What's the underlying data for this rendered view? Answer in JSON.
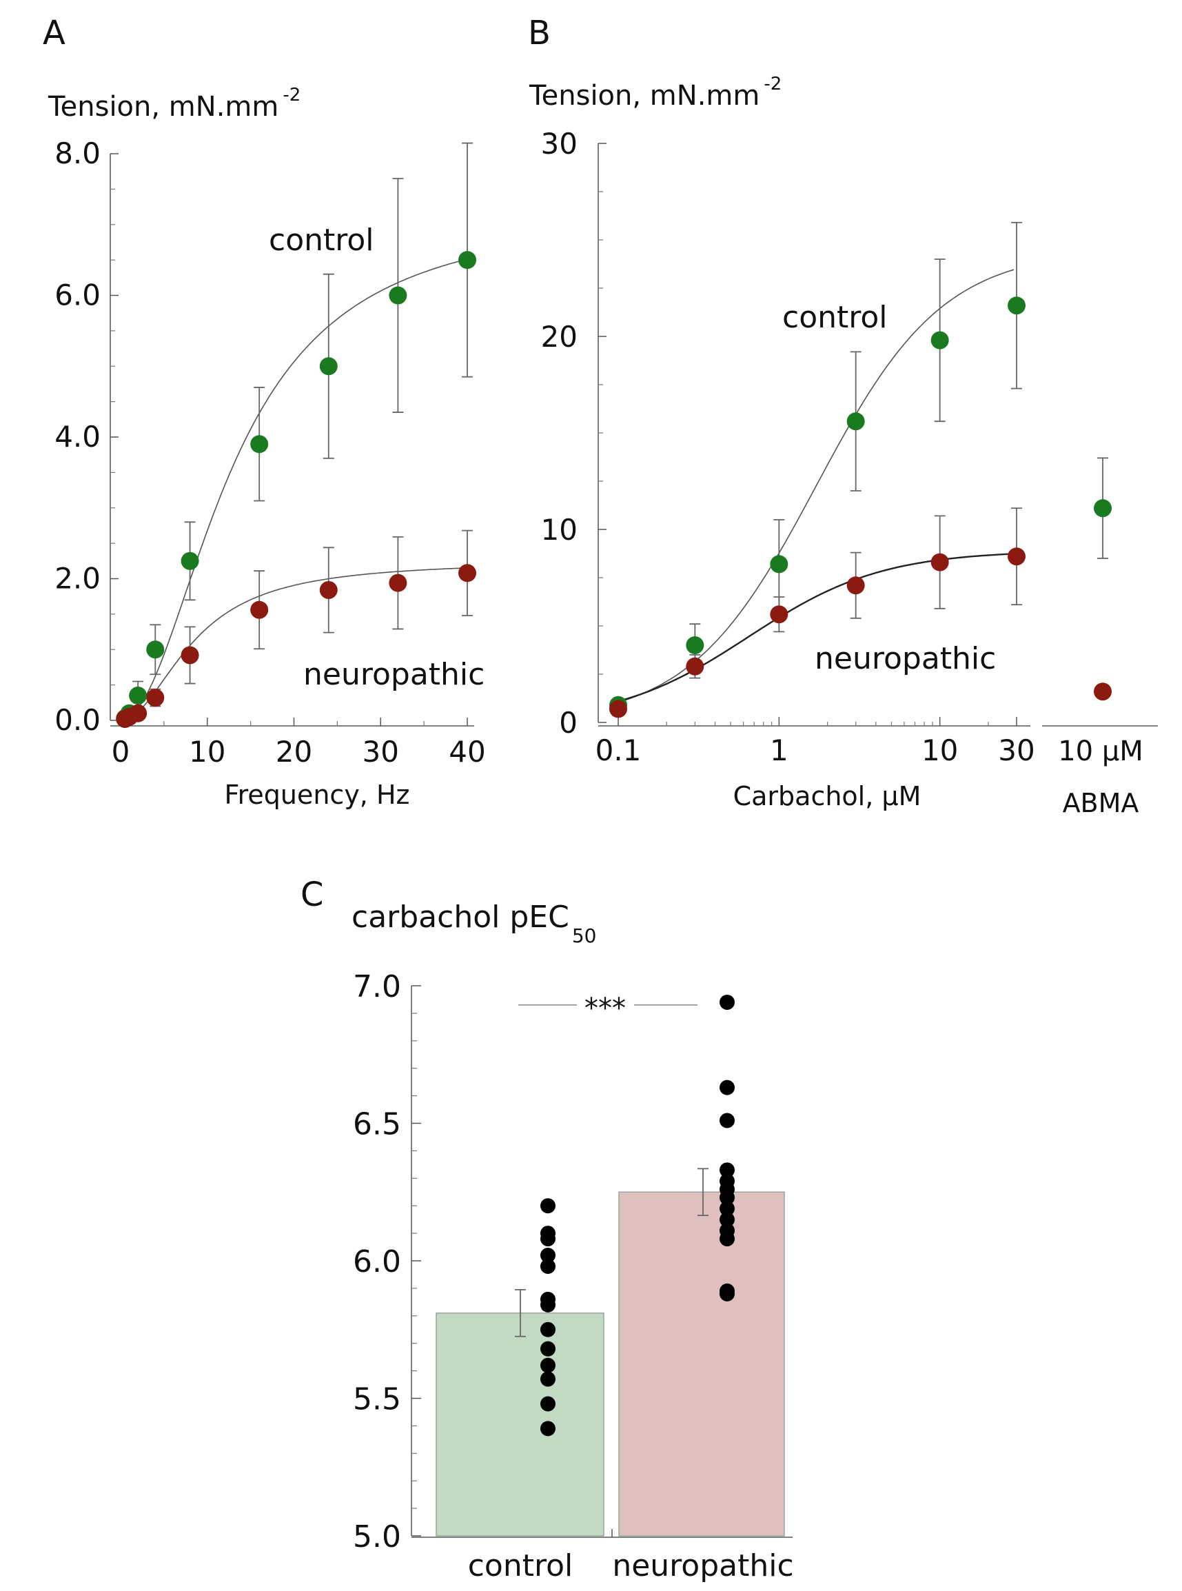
{
  "chart_data": [
    {
      "panel": "A",
      "type": "scatter",
      "ylabel": "Tension, mN.mm",
      "ylabel_sup": "-2",
      "xlabel": "Frequency, Hz",
      "xlim": [
        0,
        40
      ],
      "ylim": [
        0,
        8
      ],
      "x_ticks": [
        0,
        10,
        20,
        30,
        40
      ],
      "x_tick_labels": [
        "0",
        "10",
        "20",
        "30",
        "40"
      ],
      "y_ticks": [
        0,
        2,
        4,
        6,
        8
      ],
      "y_tick_labels": [
        "0.0",
        "2.0",
        "4.0",
        "6.0",
        "8.0"
      ],
      "series": [
        {
          "label": "control",
          "color": "#1a7a1f",
          "x": [
            0.5,
            1,
            2,
            4,
            8,
            16,
            24,
            32,
            40
          ],
          "y": [
            0.03,
            0.1,
            0.35,
            1.0,
            2.25,
            3.9,
            5.0,
            6.0,
            6.5
          ],
          "err": [
            0.02,
            0.05,
            0.2,
            0.35,
            0.55,
            0.8,
            1.3,
            1.65,
            1.65
          ]
        },
        {
          "label": "neuropathic",
          "color": "#8b1a10",
          "x": [
            0.5,
            1,
            2,
            4,
            8,
            16,
            24,
            32,
            40
          ],
          "y": [
            0.02,
            0.05,
            0.1,
            0.32,
            0.92,
            1.56,
            1.84,
            1.94,
            2.08
          ],
          "err": [
            0.01,
            0.02,
            0.05,
            0.12,
            0.4,
            0.55,
            0.6,
            0.65,
            0.6
          ]
        }
      ]
    },
    {
      "panel": "B",
      "type": "scatter",
      "ylabel": "Tension, mN.mm",
      "ylabel_sup": "-2",
      "xlabel": "Carbachol, µM",
      "x_scale": "log",
      "xlim": [
        0.1,
        30
      ],
      "ylim": [
        0,
        30
      ],
      "x_ticks": [
        0.1,
        1,
        10,
        30
      ],
      "x_tick_labels": [
        "0.1",
        "1",
        "10",
        "30"
      ],
      "y_ticks": [
        0,
        10,
        20,
        30
      ],
      "y_tick_labels": [
        "0",
        "10",
        "20",
        "30"
      ],
      "series": [
        {
          "label": "control",
          "color": "#1a7a1f",
          "x": [
            0.1,
            0.3,
            1,
            3,
            10,
            30
          ],
          "y": [
            0.9,
            4.0,
            8.2,
            15.6,
            19.8,
            21.6
          ],
          "err": [
            0.3,
            1.1,
            2.3,
            3.6,
            4.2,
            4.3
          ]
        },
        {
          "label": "neuropathic",
          "color": "#8b1a10",
          "x": [
            0.1,
            0.3,
            1,
            3,
            10,
            30
          ],
          "y": [
            0.7,
            2.9,
            5.6,
            7.1,
            8.3,
            8.6
          ],
          "err": [
            0.2,
            0.6,
            0.9,
            1.7,
            2.4,
            2.5
          ]
        }
      ],
      "abma": {
        "label_top": "10 µM",
        "label_bottom": "ABMA",
        "control": {
          "y": 11.1,
          "err": 2.6
        },
        "neuropathic": {
          "y": 1.6,
          "err": 0
        }
      }
    },
    {
      "panel": "C",
      "type": "bar",
      "ylabel": "carbachol pEC",
      "ylabel_sub": "50",
      "categories": [
        "control",
        "neuropathic"
      ],
      "values": [
        5.81,
        6.25
      ],
      "err": [
        0.085,
        0.085
      ],
      "colors": [
        "#c2d9c4",
        "#e0c0bf"
      ],
      "ylim": [
        5.0,
        7.0
      ],
      "y_ticks": [
        5.0,
        5.5,
        6.0,
        6.5,
        7.0
      ],
      "y_tick_labels": [
        "5.0",
        "5.5",
        "6.0",
        "6.5",
        "7.0"
      ],
      "significance": "***",
      "points": [
        [
          6.2,
          6.1,
          6.08,
          6.02,
          5.98,
          5.86,
          5.84,
          5.75,
          5.68,
          5.62,
          5.57,
          5.48,
          5.39
        ],
        [
          6.94,
          6.63,
          6.51,
          6.33,
          6.29,
          6.26,
          6.23,
          6.19,
          6.15,
          6.11,
          6.08,
          5.89,
          5.88
        ]
      ]
    }
  ]
}
